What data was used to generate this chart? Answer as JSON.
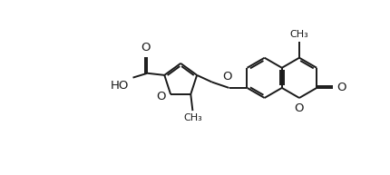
{
  "bg_color": "#ffffff",
  "line_color": "#1a1a1a",
  "line_width": 1.4,
  "figsize": [
    4.3,
    1.93
  ],
  "dpi": 100,
  "xlim": [
    0,
    10
  ],
  "ylim": [
    0,
    4.5
  ]
}
